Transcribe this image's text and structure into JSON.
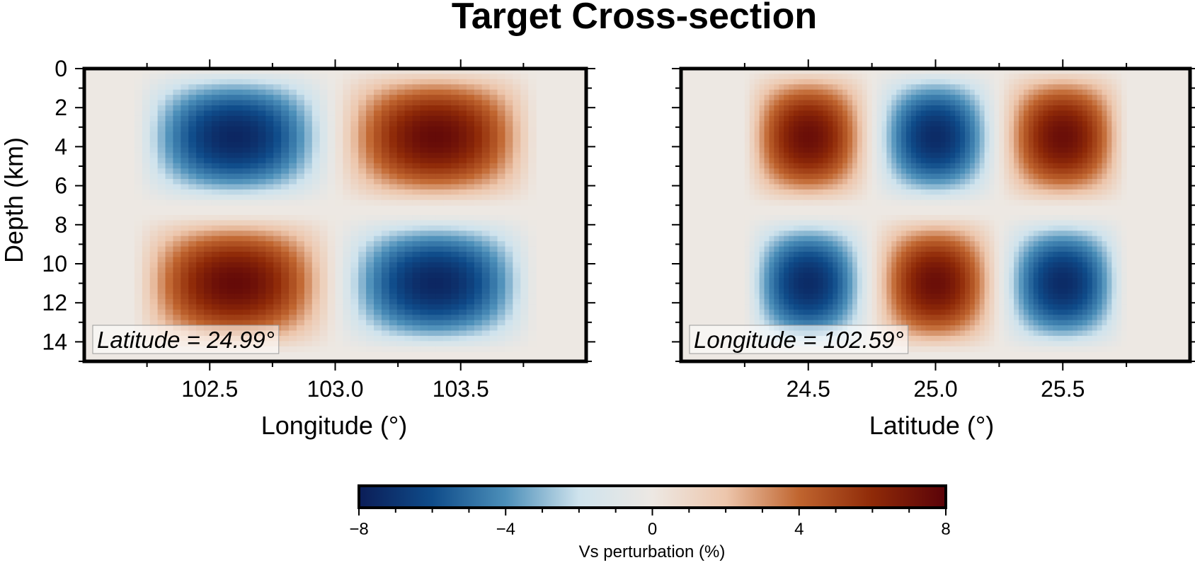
{
  "chart_data": {
    "title": "Target Cross-section",
    "panels": [
      {
        "type": "heatmap",
        "xlabel": "Longitude (°)",
        "ylabel": "Depth (km)",
        "xlim": [
          102.0,
          104.0
        ],
        "ylim": [
          15,
          0
        ],
        "xticks": [
          "102.5",
          "103.0",
          "103.5"
        ],
        "yticks": [
          "0",
          "2",
          "4",
          "6",
          "8",
          "10",
          "12",
          "14"
        ],
        "annotation": "Latitude = 24.99°",
        "anomalies": [
          {
            "x_range": [
              102.2,
              103.0
            ],
            "depth_range": [
              0,
              7
            ],
            "peak": -7.6
          },
          {
            "x_range": [
              103.0,
              103.8
            ],
            "depth_range": [
              0,
              7
            ],
            "peak": 7.6
          },
          {
            "x_range": [
              102.2,
              103.0
            ],
            "depth_range": [
              7.5,
              14.5
            ],
            "peak": 7.6
          },
          {
            "x_range": [
              103.0,
              103.8
            ],
            "depth_range": [
              7.5,
              14.5
            ],
            "peak": -7.6
          }
        ]
      },
      {
        "type": "heatmap",
        "xlabel": "Latitude (°)",
        "ylabel": "",
        "xlim": [
          24.0,
          26.0
        ],
        "ylim": [
          15,
          0
        ],
        "xticks": [
          "24.5",
          "25.0",
          "25.5"
        ],
        "yticks": [],
        "annotation": "Longitude = 102.59°",
        "anomalies": [
          {
            "x_range": [
              24.25,
              24.75
            ],
            "depth_range": [
              0,
              7
            ],
            "peak": 7.4
          },
          {
            "x_range": [
              24.75,
              25.25
            ],
            "depth_range": [
              0,
              7
            ],
            "peak": -7.4
          },
          {
            "x_range": [
              25.25,
              25.75
            ],
            "depth_range": [
              0,
              7
            ],
            "peak": 7.4
          },
          {
            "x_range": [
              24.25,
              24.75
            ],
            "depth_range": [
              7.5,
              14.5
            ],
            "peak": -7.4
          },
          {
            "x_range": [
              24.75,
              25.25
            ],
            "depth_range": [
              7.5,
              14.5
            ],
            "peak": 7.4
          },
          {
            "x_range": [
              25.25,
              25.75
            ],
            "depth_range": [
              7.5,
              14.5
            ],
            "peak": -7.4
          }
        ]
      }
    ],
    "colorbar": {
      "label": "Vs perturbation (%)",
      "range": [
        -8,
        8
      ],
      "ticks": [
        "−8",
        "−4",
        "0",
        "4",
        "8"
      ],
      "colors": [
        "#0b1d57",
        "#0f4c8a",
        "#4c8fb9",
        "#cfe3ed",
        "#ede8e3",
        "#edc6ac",
        "#c0652f",
        "#8f2a08",
        "#5a0208"
      ]
    }
  }
}
